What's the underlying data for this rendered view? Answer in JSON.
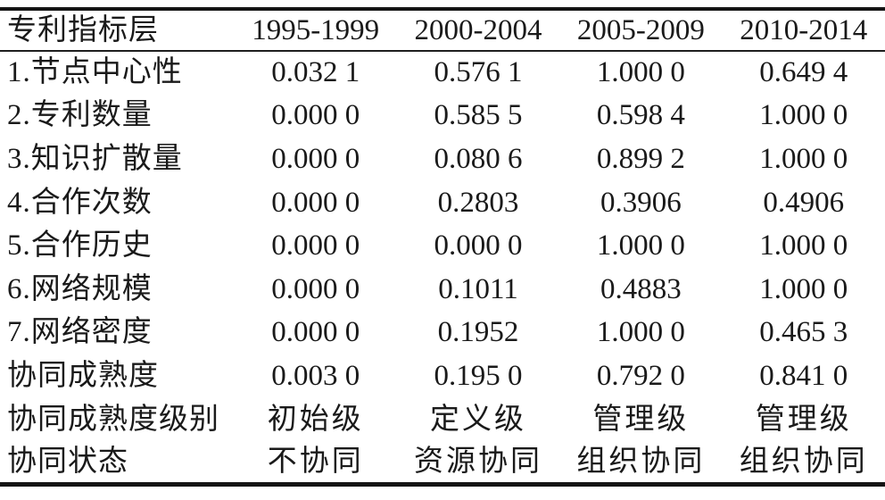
{
  "table": {
    "columns": [
      "专利指标层",
      "1995-1999",
      "2000-2004",
      "2005-2009",
      "2010-2014"
    ],
    "rows": [
      {
        "label": "1.节点中心性",
        "values": [
          "0.032 1",
          "0.576 1",
          "1.000 0",
          "0.649 4"
        ]
      },
      {
        "label": "2.专利数量",
        "values": [
          "0.000 0",
          "0.585 5",
          "0.598 4",
          "1.000 0"
        ]
      },
      {
        "label": "3.知识扩散量",
        "values": [
          "0.000 0",
          "0.080 6",
          "0.899 2",
          "1.000 0"
        ]
      },
      {
        "label": "4.合作次数",
        "values": [
          "0.000 0",
          "0.2803",
          "0.3906",
          "0.4906"
        ]
      },
      {
        "label": "5.合作历史",
        "values": [
          "0.000 0",
          "0.000 0",
          "1.000 0",
          "1.000 0"
        ]
      },
      {
        "label": "6.网络规模",
        "values": [
          "0.000 0",
          "0.1011",
          "0.4883",
          "1.000 0"
        ]
      },
      {
        "label": "7.网络密度",
        "values": [
          "0.000 0",
          "0.1952",
          "1.000 0",
          "0.465 3"
        ]
      },
      {
        "label": "协同成熟度",
        "values": [
          "0.003 0",
          "0.195 0",
          "0.792 0",
          "0.841 0"
        ]
      },
      {
        "label": "协同成熟度级别",
        "values": [
          "初始级",
          "定义级",
          "管理级",
          "管理级"
        ]
      },
      {
        "label": "协同状态",
        "values": [
          "不协同",
          "资源协同",
          "组织协同",
          "组织协同"
        ]
      }
    ],
    "colors": {
      "text": "#1a1a1a",
      "border": "#151515",
      "background": "#ffffff"
    }
  }
}
